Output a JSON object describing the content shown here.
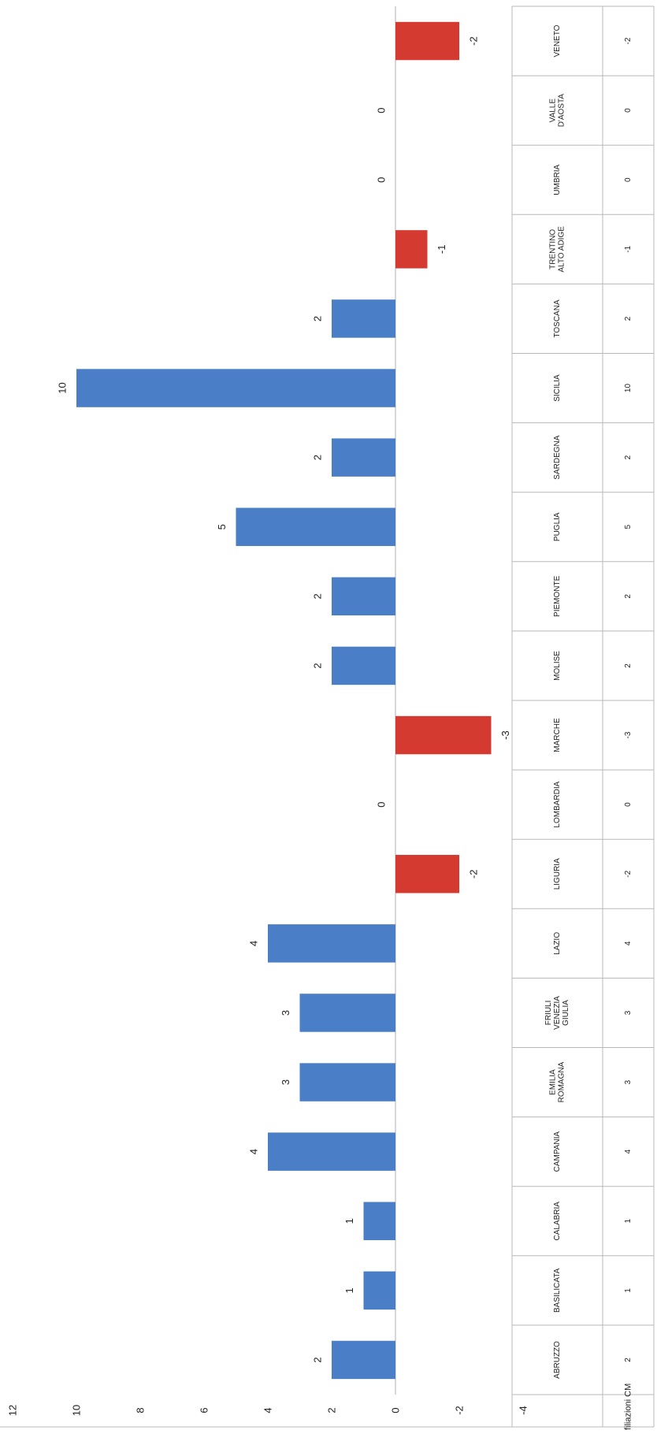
{
  "chart_data": {
    "type": "bar",
    "orientation": "rotated-90-clockwise",
    "series": [
      {
        "name": "Affiliazioni CM",
        "values": [
          2,
          1,
          1,
          4,
          3,
          3,
          4,
          -2,
          0,
          -3,
          2,
          2,
          5,
          2,
          10,
          2,
          -1,
          0,
          0,
          -2
        ]
      }
    ],
    "categories": [
      [
        "ABRUZZO"
      ],
      [
        "BASILICATA"
      ],
      [
        "CALABRIA"
      ],
      [
        "CAMPANIA"
      ],
      [
        "EMILIA",
        "ROMAGNA"
      ],
      [
        "FRIULI",
        "VENEZIA",
        "GIULIA"
      ],
      [
        "LAZIO"
      ],
      [
        "LIGURIA"
      ],
      [
        "LOMBARDIA"
      ],
      [
        "MARCHE"
      ],
      [
        "MOLISE"
      ],
      [
        "PIEMONTE"
      ],
      [
        "PUGLIA"
      ],
      [
        "SARDEGNA"
      ],
      [
        "SICILIA"
      ],
      [
        "TOSCANA"
      ],
      [
        "TRENTINO",
        "ALTO ADIGE"
      ],
      [
        "UMBRIA"
      ],
      [
        "VALLE",
        "D'AOSTA"
      ],
      [
        "VENETO"
      ]
    ],
    "table_row_label": "Affiliazioni CM",
    "value_labels": [
      "2",
      "1",
      "1",
      "4",
      "3",
      "3",
      "4",
      "-2",
      "0",
      "-3",
      "2",
      "2",
      "5",
      "2",
      "10",
      "2",
      "-1",
      "0",
      "0",
      "-2"
    ],
    "y_ticks": [
      "12",
      "10",
      "8",
      "6",
      "4",
      "2",
      "0",
      "-2",
      "-4"
    ],
    "ylim": [
      -4,
      12
    ],
    "grid": false,
    "data_table_below_axis": true,
    "colors": {
      "positive": "#4a7ec6",
      "negative": "#d43a2f",
      "axis": "#bdbdbd",
      "table": "#b8b8b8"
    }
  }
}
